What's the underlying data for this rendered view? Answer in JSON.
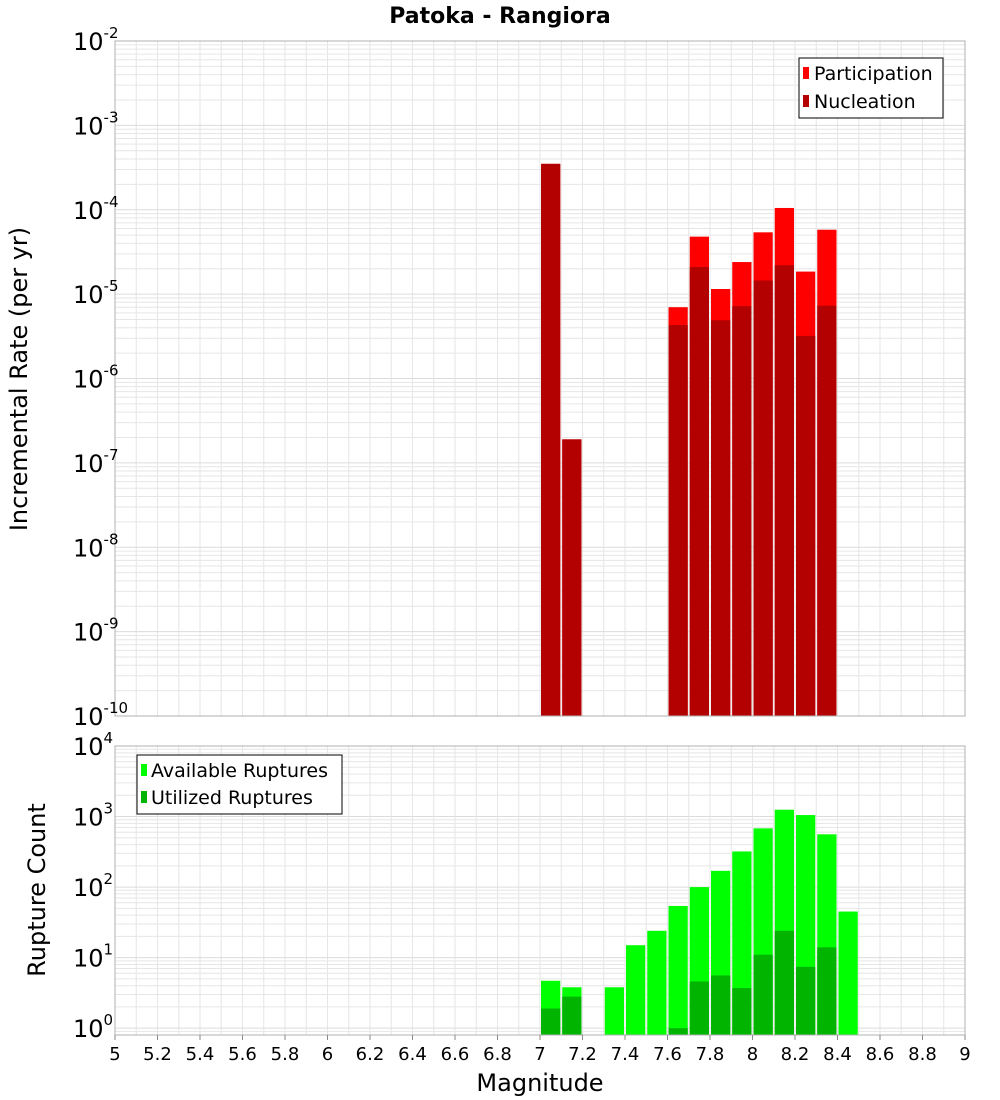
{
  "title": "Patoka - Rangiora",
  "xlabel": "Magnitude",
  "colors": {
    "participation": "#ff0000",
    "nucleation": "#b30000",
    "available": "#00ff00",
    "utilized": "#00b400",
    "grid": "#e6e6e6",
    "frame": "#b0b0b0"
  },
  "chart_data": [
    {
      "type": "bar",
      "ylabel": "Incremental Rate (per yr)",
      "yscale": "log",
      "ylim": [
        1e-10,
        0.01
      ],
      "xlim": [
        5,
        9
      ],
      "grid": true,
      "legend_position": "top-right",
      "x": [
        7.05,
        7.15,
        7.65,
        7.75,
        7.85,
        7.95,
        8.05,
        8.15,
        8.25,
        8.35
      ],
      "series": [
        {
          "name": "Participation",
          "values": [
            0.00035,
            1.9e-07,
            7e-06,
            4.8e-05,
            1.15e-05,
            2.4e-05,
            5.4e-05,
            0.000105,
            1.85e-05,
            5.8e-05
          ]
        },
        {
          "name": "Nucleation",
          "values": [
            0.00035,
            1.9e-07,
            4.3e-06,
            2.1e-05,
            4.9e-06,
            7.2e-06,
            1.45e-05,
            2.2e-05,
            3.2e-06,
            7.3e-06
          ]
        }
      ]
    },
    {
      "type": "bar",
      "ylabel": "Rupture Count",
      "yscale": "log",
      "ylim": [
        0.8,
        10000
      ],
      "xlim": [
        5,
        9
      ],
      "grid": true,
      "legend_position": "top-left",
      "x": [
        7.05,
        7.15,
        7.35,
        7.45,
        7.55,
        7.65,
        7.75,
        7.85,
        7.95,
        8.05,
        8.15,
        8.25,
        8.35,
        8.45
      ],
      "series": [
        {
          "name": "Available Ruptures",
          "values": [
            4.7,
            3.8,
            3.8,
            15,
            24,
            54,
            100,
            170,
            320,
            680,
            1250,
            1050,
            560,
            45
          ]
        },
        {
          "name": "Utilized Ruptures",
          "values": [
            1.9,
            2.8,
            0,
            0,
            0,
            1,
            4.6,
            5.6,
            3.7,
            11,
            24,
            7.4,
            14,
            0
          ]
        }
      ]
    }
  ],
  "x_ticks": [
    "5",
    "5.2",
    "5.4",
    "5.6",
    "5.8",
    "6",
    "6.2",
    "6.4",
    "6.6",
    "6.8",
    "7",
    "7.2",
    "7.4",
    "7.6",
    "7.8",
    "8",
    "8.2",
    "8.4",
    "8.6",
    "8.8",
    "9"
  ],
  "top_y_ticks": [
    {
      "base": "10",
      "exp": "-2"
    },
    {
      "base": "10",
      "exp": "-3"
    },
    {
      "base": "10",
      "exp": "-4"
    },
    {
      "base": "10",
      "exp": "-5"
    },
    {
      "base": "10",
      "exp": "-6"
    },
    {
      "base": "10",
      "exp": "-7"
    },
    {
      "base": "10",
      "exp": "-8"
    },
    {
      "base": "10",
      "exp": "-9"
    },
    {
      "base": "10",
      "exp": "-10"
    }
  ],
  "bottom_y_ticks": [
    {
      "base": "10",
      "exp": "4"
    },
    {
      "base": "10",
      "exp": "3"
    },
    {
      "base": "10",
      "exp": "2"
    },
    {
      "base": "10",
      "exp": "1"
    },
    {
      "base": "10",
      "exp": "0"
    }
  ]
}
